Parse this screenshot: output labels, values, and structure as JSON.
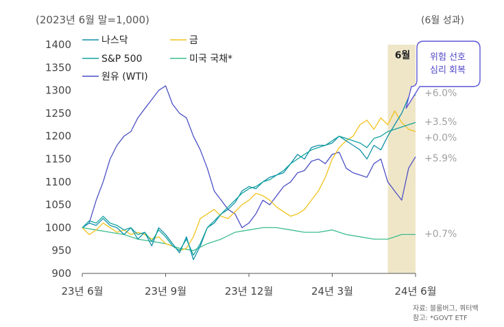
{
  "header": {
    "base_note": "(2023년 6월 말=1,000)",
    "period_label": "(6월 성과)"
  },
  "source": {
    "line1": "자료: 블룸버그, 쿼터백",
    "line2": "참고: *GOVT ETF"
  },
  "highlight": {
    "label": "6월",
    "callout_line1": "위험 선호",
    "callout_line2": "심리 회복"
  },
  "colors": {
    "nasdaq": "#0f8fa8",
    "gold": "#f2c21b",
    "sp500": "#12a39e",
    "treasury": "#3bbd8c",
    "wti": "#4b4fc4",
    "highlight_band": "#efe6c8",
    "callout_border": "#5b55d6",
    "callout_text": "#4f46c8",
    "axis_text": "#444444",
    "perf_text": "#a0a0a0"
  },
  "chart_data": {
    "type": "line",
    "xlabel": "",
    "ylabel": "",
    "ylim": [
      900,
      1400
    ],
    "yticks": [
      900,
      950,
      1000,
      1050,
      1100,
      1150,
      1200,
      1250,
      1300,
      1350,
      1400
    ],
    "x_tick_labels": [
      "23년 6월",
      "23년 9월",
      "23년 12월",
      "24년 3월",
      "24년 6월"
    ],
    "x_tick_months": [
      0,
      3,
      6,
      9,
      12
    ],
    "x_range_months": [
      0,
      12
    ],
    "highlight_range_months": [
      11,
      12
    ],
    "legend": [
      "나스닥",
      "금",
      "S&P 500",
      "미국 국채*",
      "원유 (WTI)"
    ],
    "series": [
      {
        "name": "나스닥",
        "key": "nasdaq",
        "perf_label": "+6.0%",
        "points": [
          [
            0,
            1000
          ],
          [
            0.25,
            1010
          ],
          [
            0.5,
            1005
          ],
          [
            0.75,
            1020
          ],
          [
            1,
            1005
          ],
          [
            1.25,
            1000
          ],
          [
            1.5,
            985
          ],
          [
            1.75,
            1000
          ],
          [
            2,
            975
          ],
          [
            2.25,
            990
          ],
          [
            2.5,
            960
          ],
          [
            2.75,
            1000
          ],
          [
            3,
            985
          ],
          [
            3.25,
            965
          ],
          [
            3.5,
            945
          ],
          [
            3.75,
            980
          ],
          [
            4,
            930
          ],
          [
            4.25,
            960
          ],
          [
            4.5,
            1000
          ],
          [
            4.75,
            1010
          ],
          [
            5,
            1030
          ],
          [
            5.25,
            1040
          ],
          [
            5.5,
            1055
          ],
          [
            5.75,
            1080
          ],
          [
            6,
            1090
          ],
          [
            6.25,
            1085
          ],
          [
            6.5,
            1100
          ],
          [
            6.75,
            1110
          ],
          [
            7,
            1115
          ],
          [
            7.25,
            1120
          ],
          [
            7.5,
            1140
          ],
          [
            7.75,
            1160
          ],
          [
            8,
            1150
          ],
          [
            8.25,
            1175
          ],
          [
            8.5,
            1180
          ],
          [
            8.75,
            1180
          ],
          [
            9,
            1185
          ],
          [
            9.25,
            1200
          ],
          [
            9.5,
            1190
          ],
          [
            9.75,
            1180
          ],
          [
            10,
            1170
          ],
          [
            10.25,
            1150
          ],
          [
            10.5,
            1180
          ],
          [
            10.75,
            1170
          ],
          [
            11,
            1200
          ],
          [
            11.25,
            1225
          ],
          [
            11.5,
            1250
          ],
          [
            11.75,
            1285
          ],
          [
            12,
            1290
          ]
        ]
      },
      {
        "name": "금",
        "key": "gold",
        "perf_label": "+0.0%",
        "points": [
          [
            0,
            1000
          ],
          [
            0.25,
            985
          ],
          [
            0.5,
            995
          ],
          [
            0.75,
            1010
          ],
          [
            1,
            1000
          ],
          [
            1.25,
            990
          ],
          [
            1.5,
            995
          ],
          [
            1.75,
            985
          ],
          [
            2,
            990
          ],
          [
            2.25,
            985
          ],
          [
            2.5,
            975
          ],
          [
            2.75,
            980
          ],
          [
            3,
            965
          ],
          [
            3.25,
            960
          ],
          [
            3.5,
            950
          ],
          [
            3.75,
            955
          ],
          [
            4,
            980
          ],
          [
            4.25,
            1020
          ],
          [
            4.5,
            1030
          ],
          [
            4.75,
            1040
          ],
          [
            5,
            1025
          ],
          [
            5.25,
            1020
          ],
          [
            5.5,
            1035
          ],
          [
            5.75,
            1050
          ],
          [
            6,
            1060
          ],
          [
            6.25,
            1075
          ],
          [
            6.5,
            1070
          ],
          [
            6.75,
            1060
          ],
          [
            7,
            1045
          ],
          [
            7.25,
            1035
          ],
          [
            7.5,
            1025
          ],
          [
            7.75,
            1030
          ],
          [
            8,
            1040
          ],
          [
            8.25,
            1060
          ],
          [
            8.5,
            1080
          ],
          [
            8.75,
            1110
          ],
          [
            9,
            1150
          ],
          [
            9.25,
            1175
          ],
          [
            9.5,
            1190
          ],
          [
            9.75,
            1200
          ],
          [
            10,
            1225
          ],
          [
            10.25,
            1235
          ],
          [
            10.5,
            1215
          ],
          [
            10.75,
            1240
          ],
          [
            11,
            1225
          ],
          [
            11.25,
            1255
          ],
          [
            11.5,
            1230
          ],
          [
            11.75,
            1215
          ],
          [
            12,
            1210
          ]
        ]
      },
      {
        "name": "S&P 500",
        "key": "sp500",
        "perf_label": "+3.5%",
        "points": [
          [
            0,
            1000
          ],
          [
            0.25,
            1015
          ],
          [
            0.5,
            1010
          ],
          [
            0.75,
            1025
          ],
          [
            1,
            1010
          ],
          [
            1.25,
            1005
          ],
          [
            1.5,
            995
          ],
          [
            1.75,
            1000
          ],
          [
            2,
            985
          ],
          [
            2.25,
            990
          ],
          [
            2.5,
            970
          ],
          [
            2.75,
            995
          ],
          [
            3,
            980
          ],
          [
            3.25,
            960
          ],
          [
            3.5,
            950
          ],
          [
            3.75,
            975
          ],
          [
            4,
            940
          ],
          [
            4.25,
            965
          ],
          [
            4.5,
            1000
          ],
          [
            4.75,
            1015
          ],
          [
            5,
            1030
          ],
          [
            5.25,
            1045
          ],
          [
            5.5,
            1060
          ],
          [
            5.75,
            1075
          ],
          [
            6,
            1085
          ],
          [
            6.25,
            1090
          ],
          [
            6.5,
            1100
          ],
          [
            6.75,
            1105
          ],
          [
            7,
            1115
          ],
          [
            7.25,
            1125
          ],
          [
            7.5,
            1140
          ],
          [
            7.75,
            1150
          ],
          [
            8,
            1160
          ],
          [
            8.25,
            1170
          ],
          [
            8.5,
            1175
          ],
          [
            8.75,
            1180
          ],
          [
            9,
            1190
          ],
          [
            9.25,
            1200
          ],
          [
            9.5,
            1195
          ],
          [
            9.75,
            1190
          ],
          [
            10,
            1185
          ],
          [
            10.25,
            1175
          ],
          [
            10.5,
            1195
          ],
          [
            10.75,
            1200
          ],
          [
            11,
            1210
          ],
          [
            11.25,
            1215
          ],
          [
            11.5,
            1220
          ],
          [
            11.75,
            1225
          ],
          [
            12,
            1230
          ]
        ]
      },
      {
        "name": "미국 국채*",
        "key": "treasury",
        "perf_label": "+0.7%",
        "points": [
          [
            0,
            1000
          ],
          [
            0.5,
            995
          ],
          [
            1,
            990
          ],
          [
            1.5,
            985
          ],
          [
            2,
            975
          ],
          [
            2.5,
            970
          ],
          [
            3,
            965
          ],
          [
            3.5,
            955
          ],
          [
            4,
            950
          ],
          [
            4.5,
            965
          ],
          [
            5,
            975
          ],
          [
            5.5,
            990
          ],
          [
            6,
            995
          ],
          [
            6.5,
            1000
          ],
          [
            7,
            1000
          ],
          [
            7.5,
            995
          ],
          [
            8,
            990
          ],
          [
            8.5,
            990
          ],
          [
            9,
            995
          ],
          [
            9.5,
            985
          ],
          [
            10,
            980
          ],
          [
            10.5,
            975
          ],
          [
            11,
            975
          ],
          [
            11.5,
            985
          ],
          [
            12,
            985
          ]
        ]
      },
      {
        "name": "원유 (WTI)",
        "key": "wti",
        "perf_label": "+5.9%",
        "points": [
          [
            0,
            1000
          ],
          [
            0.25,
            1010
          ],
          [
            0.5,
            1060
          ],
          [
            0.75,
            1100
          ],
          [
            1,
            1150
          ],
          [
            1.25,
            1180
          ],
          [
            1.5,
            1200
          ],
          [
            1.75,
            1210
          ],
          [
            2,
            1240
          ],
          [
            2.25,
            1260
          ],
          [
            2.5,
            1280
          ],
          [
            2.75,
            1300
          ],
          [
            3,
            1310
          ],
          [
            3.25,
            1270
          ],
          [
            3.5,
            1250
          ],
          [
            3.75,
            1240
          ],
          [
            4,
            1200
          ],
          [
            4.25,
            1170
          ],
          [
            4.5,
            1130
          ],
          [
            4.75,
            1080
          ],
          [
            5,
            1060
          ],
          [
            5.25,
            1040
          ],
          [
            5.5,
            1030
          ],
          [
            5.75,
            1000
          ],
          [
            6,
            1010
          ],
          [
            6.25,
            1030
          ],
          [
            6.5,
            1060
          ],
          [
            6.75,
            1050
          ],
          [
            7,
            1070
          ],
          [
            7.25,
            1090
          ],
          [
            7.5,
            1100
          ],
          [
            7.75,
            1120
          ],
          [
            8,
            1125
          ],
          [
            8.25,
            1145
          ],
          [
            8.5,
            1150
          ],
          [
            8.75,
            1140
          ],
          [
            9,
            1160
          ],
          [
            9.25,
            1165
          ],
          [
            9.5,
            1130
          ],
          [
            9.75,
            1120
          ],
          [
            10,
            1115
          ],
          [
            10.25,
            1110
          ],
          [
            10.5,
            1140
          ],
          [
            10.75,
            1150
          ],
          [
            11,
            1100
          ],
          [
            11.25,
            1080
          ],
          [
            11.5,
            1060
          ],
          [
            11.75,
            1130
          ],
          [
            12,
            1155
          ]
        ]
      }
    ]
  }
}
